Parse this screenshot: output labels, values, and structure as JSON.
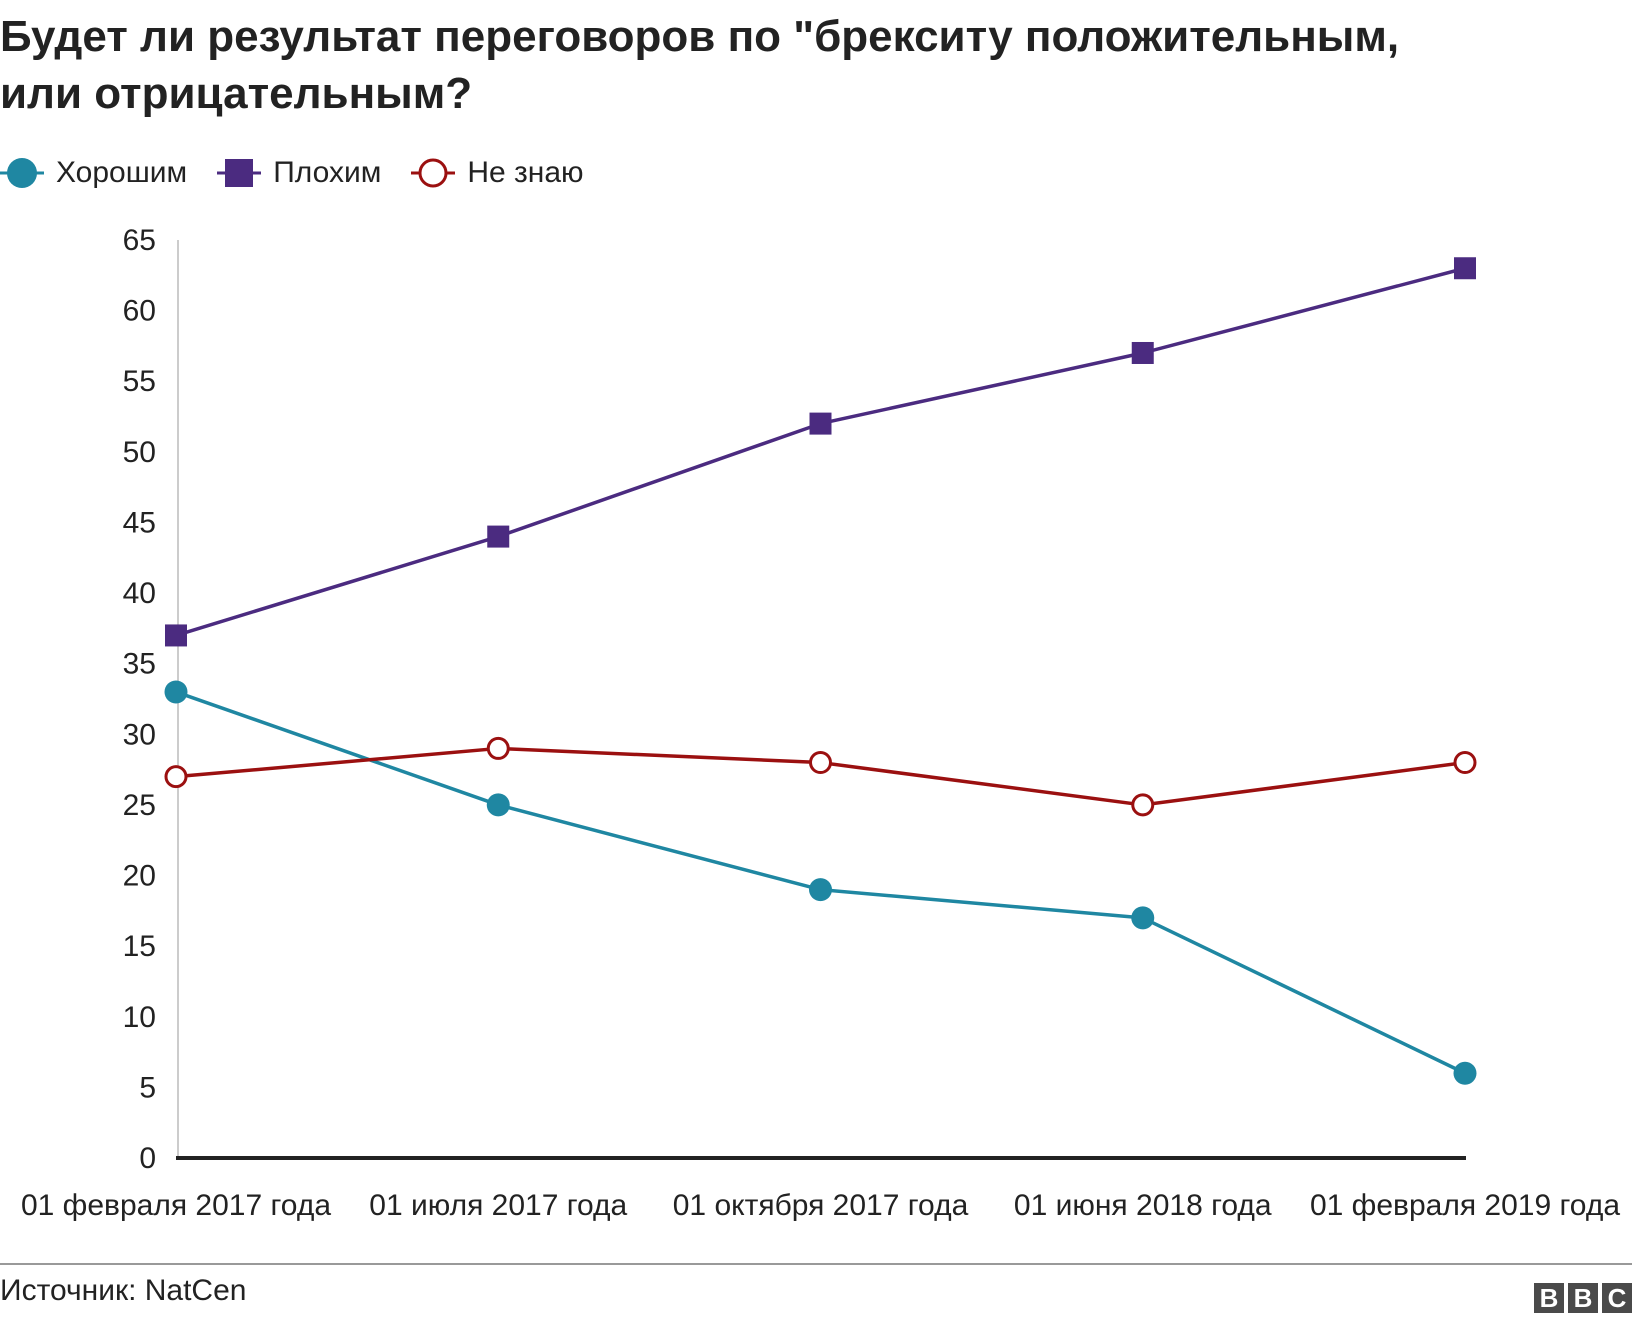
{
  "title_lines": [
    "Будет ли результат переговоров по \"брекситу положительным,",
    "или отрицательным?"
  ],
  "source": "Источник: NatCen",
  "logo": [
    "B",
    "B",
    "C"
  ],
  "colors": {
    "good": "#1f87a2",
    "bad": "#4b2b80",
    "dont_know": "#9b1010",
    "axis": "#222222"
  },
  "chart_data": {
    "type": "line",
    "title": "Будет ли результат переговоров по \"брекситу положительным, или отрицательным?",
    "categories": [
      "01 февраля 2017 года",
      "01 июля 2017 года",
      "01 октября 2017 года",
      "01 июня 2018 года",
      "01 февраля 2019 года"
    ],
    "series": [
      {
        "name": "Хорошим",
        "marker": "circle-filled",
        "color": "#1f87a2",
        "values": [
          33,
          25,
          19,
          17,
          6
        ]
      },
      {
        "name": "Плохим",
        "marker": "square-filled",
        "color": "#4b2b80",
        "values": [
          37,
          44,
          52,
          57,
          63
        ]
      },
      {
        "name": "Не знаю",
        "marker": "circle-open",
        "color": "#9b1010",
        "values": [
          27,
          29,
          28,
          25,
          28
        ]
      }
    ],
    "y_ticks": [
      "0",
      "5",
      "10",
      "15",
      "20",
      "25",
      "30",
      "35",
      "40",
      "45",
      "50",
      "55",
      "60",
      "65"
    ],
    "ylim": [
      0,
      65
    ],
    "grid": false,
    "legend_position": "top-left"
  }
}
